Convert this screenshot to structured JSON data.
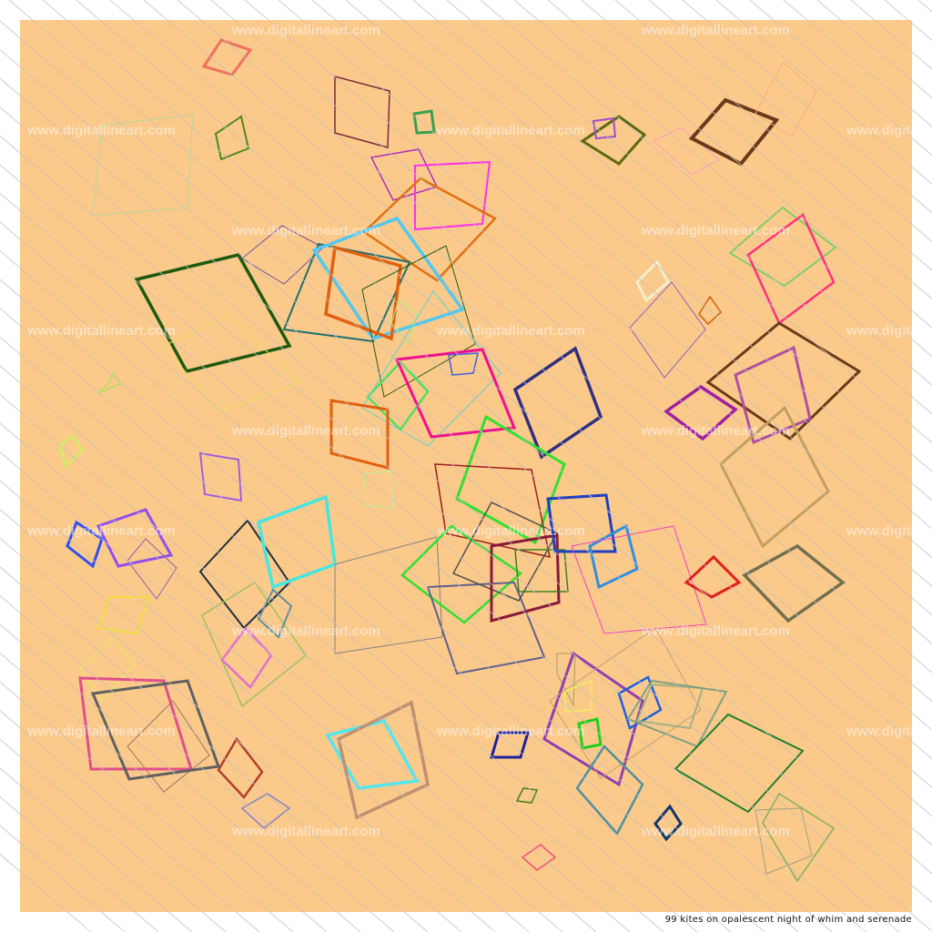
{
  "artwork": {
    "caption": "99 kites on opalescent night of whim and serenade",
    "watermark": "www.digitallineart.com",
    "background_color": "#fbc98a",
    "frame_color": "#ffffff",
    "hatch_color": "#c8c0b8"
  }
}
